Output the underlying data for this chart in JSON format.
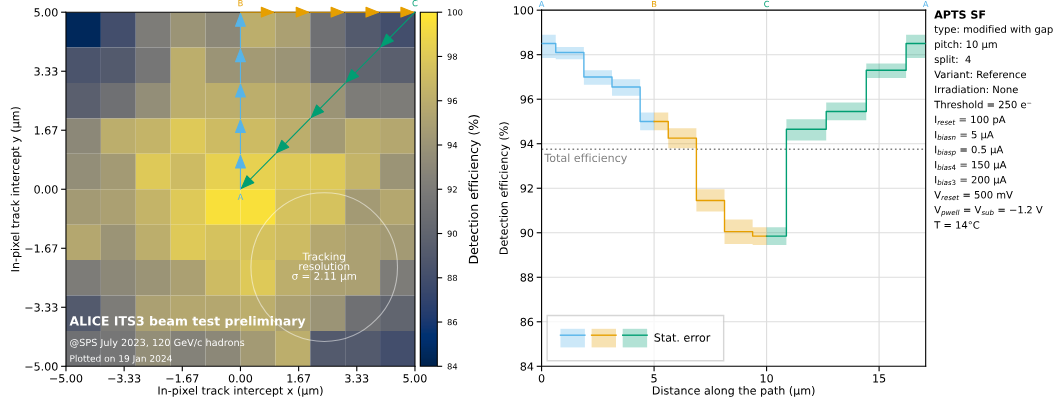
{
  "chart_data": [
    {
      "type": "heatmap",
      "xlabel": "In-pixel track intercept x (µm)",
      "ylabel": "In-pixel track intercept y (µm)",
      "clabel": "Detection efficiency (%)",
      "xlim": [
        -5,
        5
      ],
      "ylim": [
        -5,
        5
      ],
      "xticks": [
        {
          "value": -5,
          "label": "−5.00"
        },
        {
          "value": -3.333,
          "label": "−3.33"
        },
        {
          "value": -1.667,
          "label": "−1.67"
        },
        {
          "value": 0,
          "label": "0.00"
        },
        {
          "value": 1.667,
          "label": "1.67"
        },
        {
          "value": 3.333,
          "label": "3.33"
        },
        {
          "value": 5,
          "label": "5.00"
        }
      ],
      "yticks": [
        {
          "value": -5,
          "label": "−5.00"
        },
        {
          "value": -3.333,
          "label": "−3.33"
        },
        {
          "value": -1.667,
          "label": "−1.67"
        },
        {
          "value": 0,
          "label": "0.00"
        },
        {
          "value": 1.667,
          "label": "1.67"
        },
        {
          "value": 3.333,
          "label": "3.33"
        },
        {
          "value": 5,
          "label": "5.00"
        }
      ],
      "clim": [
        84,
        100
      ],
      "cticks": [
        84,
        86,
        88,
        90,
        92,
        94,
        96,
        98,
        100
      ],
      "cells": [
        [
          84.5,
          88,
          92,
          94,
          93,
          96,
          95,
          91,
          89,
          88
        ],
        [
          88.5,
          89,
          91.5,
          96,
          94,
          94.5,
          94,
          91,
          90,
          89.5
        ],
        [
          89.5,
          91,
          93.5,
          96,
          96,
          96,
          95.5,
          94,
          92,
          92
        ],
        [
          93,
          96,
          96.5,
          98,
          97,
          97,
          96,
          94.5,
          96,
          95.5
        ],
        [
          93.5,
          94.5,
          98,
          97,
          98.5,
          98.5,
          98,
          98,
          96.5,
          94
        ],
        [
          94.5,
          95,
          96.5,
          98,
          99.5,
          99.5,
          97.5,
          97.5,
          94.5,
          95.5
        ],
        [
          95.5,
          94,
          96,
          98,
          97.5,
          97.5,
          97,
          95.5,
          95,
          94.5
        ],
        [
          92,
          93,
          94,
          95,
          97,
          98,
          96,
          95,
          95,
          92
        ],
        [
          89,
          92,
          95,
          95.5,
          95.5,
          96,
          95,
          94,
          91,
          90
        ],
        [
          91,
          91.5,
          93.5,
          92.5,
          93,
          94.5,
          96,
          89,
          89,
          88
        ]
      ],
      "annotations": [
        "A",
        "B",
        "C",
        "Tracking\nresolution\nσ = 2.11 µm",
        "ALICE ITS3 beam test preliminary",
        "@SPS July 2023, 120 GeV/c hadrons",
        "Plotted on 19 Jan 2024"
      ]
    },
    {
      "type": "step",
      "xlabel": "Distance along the path (µm)",
      "ylabel": "Detection efficiency (%)",
      "xlim": [
        0,
        17.07
      ],
      "ylim": [
        84,
        100
      ],
      "xticks": [
        0,
        5,
        10,
        15
      ],
      "yticks": [
        84,
        86,
        88,
        90,
        92,
        94,
        96,
        98,
        100
      ],
      "grid": true,
      "legend": "bottom left",
      "series": [
        {
          "color": "#56b4e9",
          "x": [
            0,
            0.63,
            1.88,
            3.13,
            4.38,
            5
          ],
          "values": [
            98.5,
            98.1,
            97.0,
            96.55,
            95.0,
            95.0
          ],
          "lower": [
            97.85,
            97.8,
            96.65,
            96.15,
            94.6,
            94.6
          ],
          "upper": [
            98.9,
            98.35,
            97.3,
            96.9,
            95.4,
            95.4
          ]
        },
        {
          "color": "#e69f00",
          "x": [
            5,
            5.63,
            6.88,
            8.13,
            9.38,
            10
          ],
          "values": [
            95.0,
            94.25,
            91.45,
            90.05,
            89.85,
            89.85
          ],
          "lower": [
            94.6,
            93.8,
            90.95,
            89.5,
            89.45,
            89.45
          ],
          "upper": [
            95.4,
            94.7,
            91.95,
            90.6,
            90.25,
            90.25
          ]
        },
        {
          "name": "Stat. error",
          "color": "#009e73",
          "x": [
            10,
            10.88,
            12.65,
            14.43,
            16.2,
            17.07
          ],
          "values": [
            89.85,
            94.65,
            95.45,
            97.3,
            98.5,
            98.5
          ],
          "lower": [
            89.45,
            94.15,
            95.05,
            96.95,
            97.85,
            97.85
          ],
          "upper": [
            90.25,
            95.1,
            95.85,
            97.6,
            98.9,
            98.9
          ]
        }
      ],
      "ref_lines": [
        {
          "axis": "y",
          "value": 93.75,
          "label": "Total efficiency",
          "color": "#808080",
          "line_style": "dotted"
        }
      ],
      "annotations": [
        "A",
        "B",
        "C",
        "A"
      ]
    },
    {
      "type": "other",
      "title": "APTS SF",
      "annotations": [
        "type: modified with gap",
        "pitch: 10 µm",
        "split:  4",
        "Variant: Reference",
        "Irradiation: None",
        "Threshold = 250 e⁻",
        "I$_{reset}$ = 100 pA",
        "I$_{biasn}$ = 5 µA",
        "I$_{biasp}$ = 0.5 µA",
        "I$_{bias4}$ = 150 µA",
        "I$_{bias3}$ = 200 µA",
        "V$_{reset}$ = 500 mV",
        "V$_{pwell}$ = V$_{sub}$ = −1.2 V",
        "T = 14°C"
      ]
    }
  ]
}
